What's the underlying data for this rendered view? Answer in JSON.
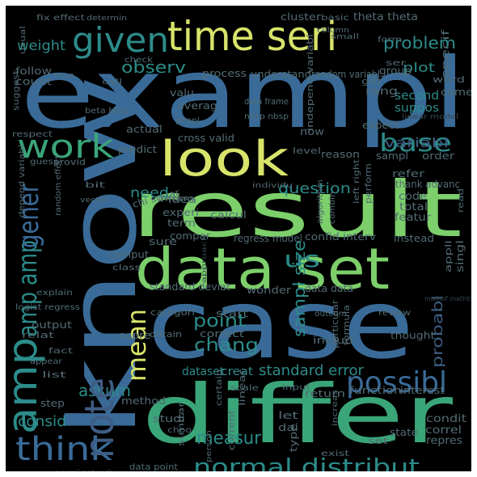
{
  "word_cloud": {
    "background": "#000000",
    "palette": {
      "yellow": "#d8e36a",
      "lime": "#7ccf6a",
      "green": "#3aa578",
      "teal": "#2c8c8a",
      "blue": "#3a6b98",
      "slate": "#3e5d84",
      "gray": "#516c75",
      "dim": "#33474f"
    },
    "words": [
      {
        "text": "exampl",
        "color": "blue"
      },
      {
        "text": "know",
        "color": "blue"
      },
      {
        "text": "result",
        "color": "lime"
      },
      {
        "text": "case",
        "color": "blue"
      },
      {
        "text": "differ",
        "color": "green"
      },
      {
        "text": "data set",
        "color": "lime"
      },
      {
        "text": "time seri",
        "color": "yellow"
      },
      {
        "text": "given",
        "color": "teal"
      },
      {
        "text": "look",
        "color": "yellow"
      },
      {
        "text": "work",
        "color": "green"
      },
      {
        "text": "think",
        "color": "blue"
      },
      {
        "text": "normal distribut",
        "color": "teal"
      },
      {
        "text": "mean",
        "color": "yellow"
      },
      {
        "text": "possibl",
        "color": "blue"
      },
      {
        "text": "base",
        "color": "teal"
      },
      {
        "text": "amp",
        "color": "teal"
      },
      {
        "text": "amp amp",
        "color": "teal"
      },
      {
        "text": "gener",
        "color": "blue"
      },
      {
        "text": "weight",
        "color": "teal"
      },
      {
        "text": "observ",
        "color": "teal"
      },
      {
        "text": "problem",
        "color": "teal"
      },
      {
        "text": "us",
        "color": "teal"
      },
      {
        "text": "chang",
        "color": "teal"
      },
      {
        "text": "measur",
        "color": "teal"
      },
      {
        "text": "assum",
        "color": "teal"
      },
      {
        "text": "consid",
        "color": "teal"
      },
      {
        "text": "note",
        "color": "slate"
      },
      {
        "text": "point",
        "color": "teal"
      },
      {
        "text": "need",
        "color": "teal"
      },
      {
        "text": "question",
        "color": "teal"
      },
      {
        "text": "sampl size",
        "color": "teal"
      },
      {
        "text": "probabl",
        "color": "slate"
      },
      {
        "text": "standard error",
        "color": "teal"
      },
      {
        "text": "variabl",
        "color": "slate"
      },
      {
        "text": "dataset",
        "color": "teal"
      },
      {
        "text": "creat",
        "color": "teal"
      },
      {
        "text": "plot",
        "color": "teal"
      },
      {
        "text": "second",
        "color": "teal"
      },
      {
        "text": "suppos",
        "color": "teal"
      },
      {
        "text": "fix effect",
        "color": "gray"
      },
      {
        "text": "determin",
        "color": "gray"
      },
      {
        "text": "cluster",
        "color": "gray"
      },
      {
        "text": "basic",
        "color": "gray"
      },
      {
        "text": "theta theta",
        "color": "gray"
      },
      {
        "text": "follow",
        "color": "gray"
      },
      {
        "text": "count",
        "color": "gray"
      },
      {
        "text": "process",
        "color": "gray"
      },
      {
        "text": "understand",
        "color": "gray"
      },
      {
        "text": "random variabl",
        "color": "gray"
      },
      {
        "text": "averag",
        "color": "gray"
      },
      {
        "text": "data frame",
        "color": "gray"
      },
      {
        "text": "nbsp nbsp",
        "color": "gray"
      },
      {
        "text": "rang",
        "color": "gray"
      },
      {
        "text": "group",
        "color": "gray"
      },
      {
        "text": "form",
        "color": "gray"
      },
      {
        "text": "specif",
        "color": "gray"
      },
      {
        "text": "word",
        "color": "gray"
      },
      {
        "text": "come",
        "color": "gray"
      },
      {
        "text": "beta beta",
        "color": "gray"
      },
      {
        "text": "valu",
        "color": "gray"
      },
      {
        "text": "peopl",
        "color": "gray"
      },
      {
        "text": "suggest",
        "color": "gray"
      },
      {
        "text": "respect",
        "color": "gray"
      },
      {
        "text": "cross valid",
        "color": "gray"
      },
      {
        "text": "independ variabl",
        "color": "gray"
      },
      {
        "text": "level",
        "color": "gray"
      },
      {
        "text": "expect",
        "color": "gray"
      },
      {
        "text": "reason",
        "color": "gray"
      },
      {
        "text": "sampl",
        "color": "gray"
      },
      {
        "text": "order",
        "color": "gray"
      },
      {
        "text": "refer",
        "color": "gray"
      },
      {
        "text": "thank advanc",
        "color": "gray"
      },
      {
        "text": "linear model",
        "color": "dim"
      },
      {
        "text": "actual",
        "color": "gray"
      },
      {
        "text": "predict",
        "color": "gray"
      },
      {
        "text": "inform",
        "color": "gray"
      },
      {
        "text": "compar",
        "color": "gray"
      },
      {
        "text": "individu",
        "color": "gray"
      },
      {
        "text": "chi squar",
        "color": "gray"
      },
      {
        "text": "idea",
        "color": "gray"
      },
      {
        "text": "experi",
        "color": "gray"
      },
      {
        "text": "term",
        "color": "gray"
      },
      {
        "text": "calcul",
        "color": "gray"
      },
      {
        "text": "code",
        "color": "gray"
      },
      {
        "text": "total",
        "color": "gray"
      },
      {
        "text": "featur",
        "color": "gray"
      },
      {
        "text": "combin",
        "color": "gray"
      },
      {
        "text": "algorithm",
        "color": "gray"
      },
      {
        "text": "perform",
        "color": "gray"
      },
      {
        "text": "left right",
        "color": "gray"
      },
      {
        "text": "sure",
        "color": "gray"
      },
      {
        "text": "regress model",
        "color": "gray"
      },
      {
        "text": "confid interv",
        "color": "gray"
      },
      {
        "text": "instead",
        "color": "gray"
      },
      {
        "text": "appli",
        "color": "gray"
      },
      {
        "text": "singl",
        "color": "gray"
      },
      {
        "text": "random effect",
        "color": "gray"
      },
      {
        "text": "depend variabl",
        "color": "gray"
      },
      {
        "text": "comput",
        "color": "gray"
      },
      {
        "text": "class",
        "color": "gray"
      },
      {
        "text": "approach",
        "color": "dim"
      },
      {
        "text": "standard deviat",
        "color": "gray"
      },
      {
        "text": "wonder",
        "color": "gray"
      },
      {
        "text": "data data",
        "color": "gray"
      },
      {
        "text": "explain",
        "color": "gray"
      },
      {
        "text": "logist regress",
        "color": "gray"
      },
      {
        "text": "output",
        "color": "gray"
      },
      {
        "text": "start",
        "color": "gray"
      },
      {
        "text": "outcom",
        "color": "gray"
      },
      {
        "text": "relat",
        "color": "gray"
      },
      {
        "text": "categori",
        "color": "gray"
      },
      {
        "text": "correct",
        "color": "gray"
      },
      {
        "text": "obtain",
        "color": "gray"
      },
      {
        "text": "thought",
        "color": "gray"
      },
      {
        "text": "score",
        "color": "gray"
      },
      {
        "text": "particular",
        "color": "gray"
      },
      {
        "text": "formula",
        "color": "gray"
      },
      {
        "text": "includ",
        "color": "gray"
      },
      {
        "text": "review",
        "color": "gray"
      },
      {
        "text": "mathbf mathbf",
        "color": "dim"
      },
      {
        "text": "scale",
        "color": "gray"
      },
      {
        "text": "input",
        "color": "gray"
      },
      {
        "text": "return",
        "color": "gray"
      },
      {
        "text": "function",
        "color": "gray"
      },
      {
        "text": "interest",
        "color": "gray"
      },
      {
        "text": "method",
        "color": "gray"
      },
      {
        "text": "certain",
        "color": "gray"
      },
      {
        "text": "linear",
        "color": "gray"
      },
      {
        "text": "let",
        "color": "gray"
      },
      {
        "text": "dai",
        "color": "gray"
      },
      {
        "text": "current",
        "color": "gray"
      },
      {
        "text": "condit",
        "color": "gray"
      },
      {
        "text": "correl",
        "color": "gray"
      },
      {
        "text": "repres",
        "color": "gray"
      },
      {
        "text": "state",
        "color": "gray"
      },
      {
        "text": "type",
        "color": "gray"
      },
      {
        "text": "studi",
        "color": "gray"
      },
      {
        "text": "step",
        "color": "gray"
      },
      {
        "text": "list",
        "color": "gray"
      },
      {
        "text": "similar",
        "color": "gray"
      },
      {
        "text": "person",
        "color": "gray"
      },
      {
        "text": "exist",
        "color": "gray"
      },
      {
        "text": "increas",
        "color": "gray"
      },
      {
        "text": "neural network",
        "color": "dim"
      },
      {
        "text": "data point",
        "color": "gray"
      },
      {
        "text": "choo",
        "color": "gray"
      },
      {
        "text": "true",
        "color": "gray"
      },
      {
        "text": "check",
        "color": "gray"
      },
      {
        "text": "call",
        "color": "gray"
      },
      {
        "text": "got",
        "color": "gray"
      },
      {
        "text": "ser",
        "color": "gray"
      },
      {
        "text": "guess",
        "color": "gray"
      },
      {
        "text": "provid",
        "color": "gray"
      },
      {
        "text": "small",
        "color": "gray"
      },
      {
        "text": "column",
        "color": "gray"
      },
      {
        "text": "vector",
        "color": "gray"
      },
      {
        "text": "read",
        "color": "gray"
      },
      {
        "text": "usual",
        "color": "gray"
      },
      {
        "text": "fact",
        "color": "gray"
      },
      {
        "text": "appear",
        "color": "gray"
      },
      {
        "text": "set",
        "color": "gray"
      },
      {
        "text": "now",
        "color": "gray"
      },
      {
        "text": "bit",
        "color": "gray"
      }
    ]
  }
}
